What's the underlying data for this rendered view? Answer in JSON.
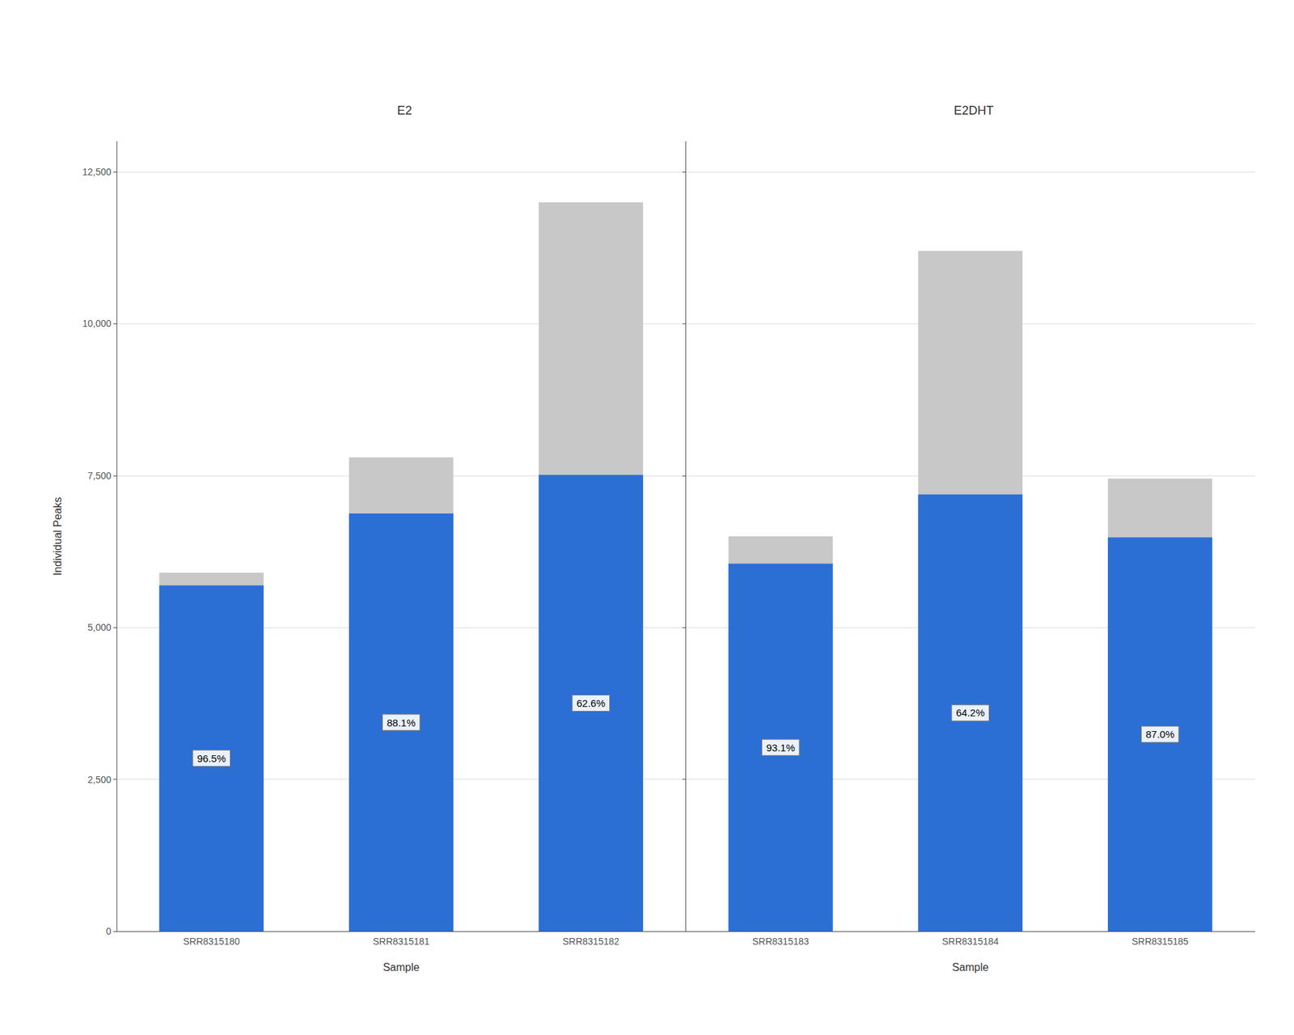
{
  "chart_data": [
    {
      "type": "bar",
      "title": "E2",
      "categories": [
        "SRR8315180",
        "SRR8315181",
        "SRR8315182"
      ],
      "series": [
        {
          "color": "#c8c8c8",
          "values": [
            5900,
            7800,
            12000
          ]
        },
        {
          "color": "#2b6fd4",
          "values": [
            5694,
            6877,
            7512
          ],
          "annotations": [
            "96.5%",
            "88.1%",
            "62.6%"
          ]
        }
      ],
      "xlabel": "Sample",
      "ylabel": "Individual Peaks",
      "ylim": [
        0,
        13000
      ],
      "yticks": [
        0,
        {
          "value": 2500,
          "label": "2,500"
        },
        {
          "value": 5000,
          "label": "5,000"
        },
        {
          "value": 7500,
          "label": "7,500"
        },
        {
          "value": 10000,
          "label": "10,000"
        },
        {
          "value": 12500,
          "label": "12,500"
        }
      ],
      "grid": true
    },
    {
      "type": "bar",
      "title": "E2DHT",
      "categories": [
        "SRR8315183",
        "SRR8315184",
        "SRR8315185"
      ],
      "series": [
        {
          "color": "#c8c8c8",
          "values": [
            6500,
            11200,
            7450
          ]
        },
        {
          "color": "#2b6fd4",
          "values": [
            6052,
            7190,
            6482
          ],
          "annotations": [
            "93.1%",
            "64.2%",
            "87.0%"
          ]
        }
      ],
      "xlabel": "Sample",
      "ylim": [
        0,
        13000
      ],
      "yticks": [
        0,
        2500,
        5000,
        7500,
        10000,
        12500
      ],
      "grid": true,
      "tick_labels": "x"
    }
  ]
}
